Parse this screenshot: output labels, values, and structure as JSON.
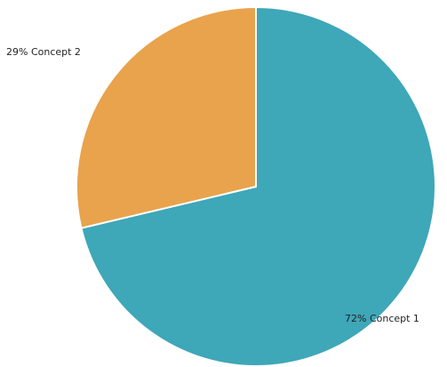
{
  "chart_data": {
    "type": "pie",
    "slices": [
      {
        "label": "72% Concept 1",
        "value": 72,
        "color": "#3ea7b8"
      },
      {
        "label": "29% Concept 2",
        "value": 29,
        "color": "#e8a34c"
      }
    ],
    "start_angle": "12 o'clock",
    "direction": "clockwise",
    "legend": "none"
  }
}
